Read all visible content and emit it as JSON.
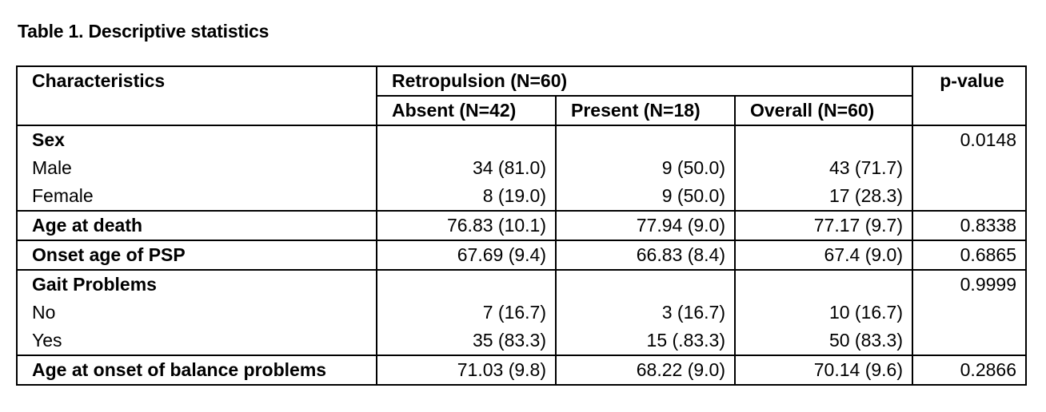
{
  "caption": "Table 1. Descriptive statistics",
  "header": {
    "characteristics": "Characteristics",
    "retropulsion": "Retropulsion (N=60)",
    "pvalue": "p-value",
    "absent": "Absent (N=42)",
    "present": "Present (N=18)",
    "overall": "Overall (N=60)"
  },
  "sex": {
    "label": "Sex",
    "pvalue": "0.0148",
    "male": {
      "label": "Male",
      "absent": "34 (81.0)",
      "present": "9 (50.0)",
      "overall": "43 (71.7)"
    },
    "female": {
      "label": "Female",
      "absent": "8 (19.0)",
      "present": "9 (50.0)",
      "overall": "17 (28.3)"
    }
  },
  "age_death": {
    "label": "Age at death",
    "absent": "76.83 (10.1)",
    "present": "77.94 (9.0)",
    "overall": "77.17 (9.7)",
    "pvalue": "0.8338"
  },
  "onset_psp": {
    "label": "Onset age of PSP",
    "absent": "67.69 (9.4)",
    "present": "66.83 (8.4)",
    "overall": "67.4 (9.0)",
    "pvalue": "0.6865"
  },
  "gait": {
    "label": "Gait Problems",
    "pvalue": "0.9999",
    "no": {
      "label": "No",
      "absent": "7 (16.7)",
      "present": "3 (16.7)",
      "overall": "10 (16.7)"
    },
    "yes": {
      "label": "Yes",
      "absent": "35 (83.3)",
      "present": "15 (.83.3)",
      "overall": "50 (83.3)"
    }
  },
  "balance": {
    "label": "Age at onset of balance problems",
    "absent": "71.03 (9.8)",
    "present": "68.22 (9.0)",
    "overall": "70.14 (9.6)",
    "pvalue": "0.2866"
  }
}
